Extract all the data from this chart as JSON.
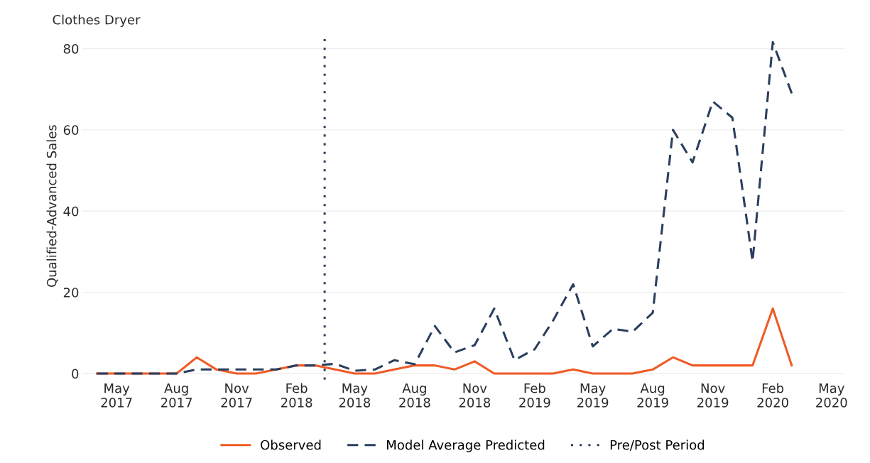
{
  "chart_data": {
    "type": "line",
    "title": "Clothes Dryer",
    "ylabel": "Qualified-Advanced Sales",
    "x": [
      "2017-04",
      "2017-05",
      "2017-06",
      "2017-07",
      "2017-08",
      "2017-09",
      "2017-10",
      "2017-11",
      "2017-12",
      "2018-01",
      "2018-02",
      "2018-03",
      "2018-04",
      "2018-05",
      "2018-06",
      "2018-07",
      "2018-08",
      "2018-09",
      "2018-10",
      "2018-11",
      "2018-12",
      "2019-01",
      "2019-02",
      "2019-03",
      "2019-04",
      "2019-05",
      "2019-06",
      "2019-07",
      "2019-08",
      "2019-09",
      "2019-10",
      "2019-11",
      "2019-12",
      "2020-01",
      "2020-02",
      "2020-03"
    ],
    "series": [
      {
        "name": "Observed",
        "color": "#ef5b25",
        "line_style": "solid",
        "values": [
          0,
          0,
          0,
          0,
          0,
          4,
          1,
          0,
          0,
          1,
          2,
          2,
          1,
          0,
          0,
          1,
          2,
          2,
          1,
          3,
          0,
          0,
          0,
          0,
          1,
          0,
          0,
          0,
          1,
          4,
          2,
          2,
          2,
          2,
          16,
          2
        ]
      },
      {
        "name": "Model Average Predicted",
        "color": "#2a3f5f",
        "line_style": "dashed",
        "values": [
          0,
          0,
          0,
          0,
          0,
          1,
          1,
          1,
          1,
          1,
          2,
          2,
          2.4,
          0.7,
          1,
          3.3,
          2.3,
          11.7,
          5.2,
          7,
          16,
          3.3,
          6,
          13,
          22,
          6.7,
          11,
          10.3,
          15,
          60,
          52,
          67,
          63,
          27.6,
          81.6,
          69
        ]
      }
    ],
    "ref_lines": [
      {
        "axis": "x",
        "value": "2018-03-16",
        "label": "Pre/Post Period",
        "color": "#2a3f5f",
        "line_style": "dotted"
      }
    ],
    "xlim": [
      "2017-03-10",
      "2020-05-20"
    ],
    "xticks": [
      {
        "value": "2017-05",
        "label": "May\n2017"
      },
      {
        "value": "2017-08",
        "label": "Aug\n2017"
      },
      {
        "value": "2017-11",
        "label": "Nov\n2017"
      },
      {
        "value": "2018-02",
        "label": "Feb\n2018"
      },
      {
        "value": "2018-05",
        "label": "May\n2018"
      },
      {
        "value": "2018-08",
        "label": "Aug\n2018"
      },
      {
        "value": "2018-11",
        "label": "Nov\n2018"
      },
      {
        "value": "2019-02",
        "label": "Feb\n2019"
      },
      {
        "value": "2019-05",
        "label": "May\n2019"
      },
      {
        "value": "2019-08",
        "label": "Aug\n2019"
      },
      {
        "value": "2019-11",
        "label": "Nov\n2019"
      },
      {
        "value": "2020-02",
        "label": "Feb\n2020"
      },
      {
        "value": "2020-05",
        "label": "May\n2020"
      }
    ],
    "ylim": [
      -1.5,
      84
    ],
    "yticks": [
      0,
      20,
      40,
      60,
      80
    ],
    "grid": "y",
    "legend": "bottom"
  }
}
